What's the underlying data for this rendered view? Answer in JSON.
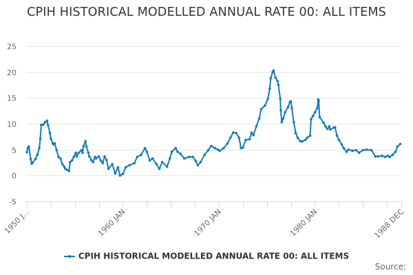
{
  "chart_data": {
    "type": "line",
    "title": "CPIH HISTORICAL MODELLED ANNUAL RATE 00: ALL ITEMS",
    "xlabel": "",
    "ylabel": "",
    "ylim": [
      -5,
      25
    ],
    "yticks": [
      25,
      20,
      15,
      10,
      5,
      0,
      -5
    ],
    "xlim": [
      1950.0,
      1989.0
    ],
    "xticks": [
      {
        "x": 1950.0,
        "label": "1950 J..."
      },
      {
        "x": 1960.0,
        "label": "1960 JAN"
      },
      {
        "x": 1970.0,
        "label": "1970 JAN"
      },
      {
        "x": 1980.0,
        "label": "1980 JAN"
      },
      {
        "x": 1989.0,
        "label": "1988 DEC"
      }
    ],
    "minor_tick_interval_years": 2.5,
    "grid": true,
    "legend_position": "bottom-center",
    "source_label": "Source:",
    "series": [
      {
        "name": "CPIH HISTORICAL MODELLED ANNUAL RATE 00: ALL ITEMS",
        "color": "#137bbd",
        "x": [
          1950.0,
          1950.1,
          1950.2,
          1950.4,
          1950.5,
          1950.6,
          1950.9,
          1951.1,
          1951.3,
          1951.4,
          1951.5,
          1951.7,
          1951.9,
          1952.1,
          1952.2,
          1952.4,
          1952.5,
          1952.7,
          1952.8,
          1952.9,
          1953.1,
          1953.3,
          1953.5,
          1953.7,
          1953.9,
          1954.0,
          1954.2,
          1954.4,
          1954.5,
          1954.7,
          1954.9,
          1955.1,
          1955.2,
          1955.4,
          1955.7,
          1955.8,
          1955.9,
          1956.1,
          1956.2,
          1956.4,
          1956.5,
          1956.7,
          1956.9,
          1957.1,
          1957.2,
          1957.5,
          1957.7,
          1957.9,
          1958.1,
          1958.3,
          1958.5,
          1958.9,
          1959.2,
          1959.5,
          1959.7,
          1960.0,
          1960.3,
          1960.7,
          1961.2,
          1961.5,
          1961.9,
          1962.3,
          1962.5,
          1962.8,
          1963.1,
          1963.5,
          1963.8,
          1964.1,
          1964.6,
          1964.9,
          1965.1,
          1965.5,
          1965.7,
          1966.0,
          1966.4,
          1966.9,
          1967.3,
          1967.6,
          1967.8,
          1968.1,
          1968.5,
          1968.9,
          1969.2,
          1969.6,
          1969.9,
          1970.1,
          1970.5,
          1970.9,
          1971.2,
          1971.5,
          1971.8,
          1972.1,
          1972.3,
          1972.5,
          1972.8,
          1973.2,
          1973.4,
          1973.6,
          1973.9,
          1974.2,
          1974.4,
          1974.8,
          1975.1,
          1975.3,
          1975.4,
          1975.6,
          1975.7,
          1975.9,
          1976.1,
          1976.2,
          1976.4,
          1976.45,
          1976.55,
          1976.7,
          1976.9,
          1977.2,
          1977.4,
          1977.5,
          1977.6,
          1977.8,
          1978.0,
          1978.2,
          1978.5,
          1978.7,
          1979.0,
          1979.2,
          1979.5,
          1979.6,
          1979.8,
          1980.0,
          1980.25,
          1980.35,
          1980.4,
          1980.5,
          1980.9,
          1981.1,
          1981.3,
          1981.5,
          1981.6,
          1982.0,
          1982.1,
          1982.3,
          1982.5,
          1982.8,
          1983.0,
          1983.3,
          1983.5,
          1983.9,
          1984.3,
          1984.6,
          1985.0,
          1985.4,
          1985.9,
          1986.3,
          1986.6,
          1987.0,
          1987.3,
          1987.6,
          1987.8,
          1988.1,
          1988.4,
          1988.6,
          1988.9
        ],
        "values": [
          4.5,
          5.3,
          5.6,
          3.2,
          2.3,
          2.5,
          3.2,
          4.0,
          5.3,
          7.1,
          9.8,
          9.8,
          10.3,
          10.6,
          9.8,
          8.2,
          7.1,
          6.2,
          6.0,
          6.2,
          4.9,
          3.6,
          3.3,
          2.2,
          1.7,
          1.3,
          1.1,
          0.9,
          2.6,
          2.9,
          3.6,
          4.4,
          3.7,
          4.4,
          4.9,
          4.4,
          5.7,
          6.6,
          5.6,
          4.4,
          3.7,
          3.0,
          2.6,
          3.6,
          3.3,
          3.7,
          2.9,
          2.4,
          3.7,
          3.0,
          1.3,
          2.2,
          0.4,
          1.6,
          0.0,
          0.3,
          1.6,
          2.0,
          2.4,
          3.6,
          4.0,
          5.3,
          4.6,
          2.9,
          3.3,
          2.2,
          1.3,
          2.6,
          1.7,
          3.3,
          4.6,
          5.3,
          4.6,
          4.2,
          3.3,
          3.6,
          3.6,
          2.8,
          2.0,
          2.6,
          4.0,
          4.9,
          5.7,
          5.3,
          5.0,
          4.8,
          5.3,
          6.2,
          7.3,
          8.3,
          8.2,
          7.3,
          5.3,
          5.4,
          6.9,
          7.0,
          8.3,
          7.8,
          9.5,
          11.0,
          12.8,
          13.5,
          14.8,
          16.8,
          18.8,
          20.0,
          20.3,
          18.9,
          18.3,
          17.5,
          14.8,
          12.6,
          10.3,
          11.0,
          12.2,
          13.2,
          14.2,
          14.3,
          13.0,
          10.3,
          8.2,
          7.3,
          6.6,
          6.6,
          6.9,
          7.3,
          7.7,
          10.9,
          11.5,
          12.2,
          13.0,
          14.7,
          14.4,
          11.3,
          10.2,
          9.5,
          9.0,
          9.5,
          8.9,
          9.3,
          9.3,
          7.7,
          6.9,
          6.0,
          5.3,
          4.6,
          5.0,
          4.8,
          4.9,
          4.4,
          4.9,
          5.0,
          4.9,
          3.7,
          3.7,
          3.8,
          3.6,
          3.8,
          3.6,
          4.0,
          4.6,
          5.6,
          6.1
        ]
      }
    ]
  }
}
